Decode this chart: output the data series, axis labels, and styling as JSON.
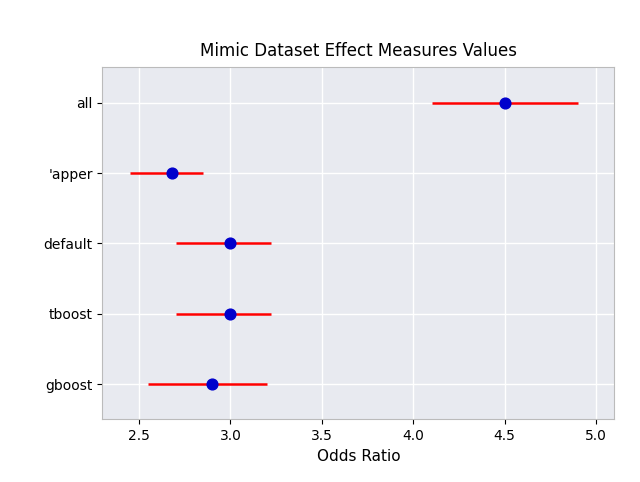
{
  "title": "Mimic Dataset Effect Measures Values",
  "xlabel": "Odds Ratio",
  "categories": [
    "all",
    "'apper",
    "default",
    "tboost",
    "gboost"
  ],
  "centers": [
    4.5,
    2.68,
    3.0,
    3.0,
    2.9
  ],
  "ci_low": [
    4.1,
    2.45,
    2.7,
    2.7,
    2.55
  ],
  "ci_high": [
    4.9,
    2.85,
    3.22,
    3.22,
    3.2
  ],
  "xlim": [
    2.3,
    5.1
  ],
  "xticks": [
    2.5,
    3.0,
    3.5,
    4.0,
    4.5,
    5.0
  ],
  "dot_color": "#0000cc",
  "line_color": "#ff0000",
  "bg_color": "#e8eaf0",
  "outer_bg": "#f2f2f2",
  "fig_bg": "#ffffff",
  "dot_size": 60,
  "line_width": 1.8,
  "title_fontsize": 12,
  "tick_fontsize": 10,
  "label_fontsize": 11
}
